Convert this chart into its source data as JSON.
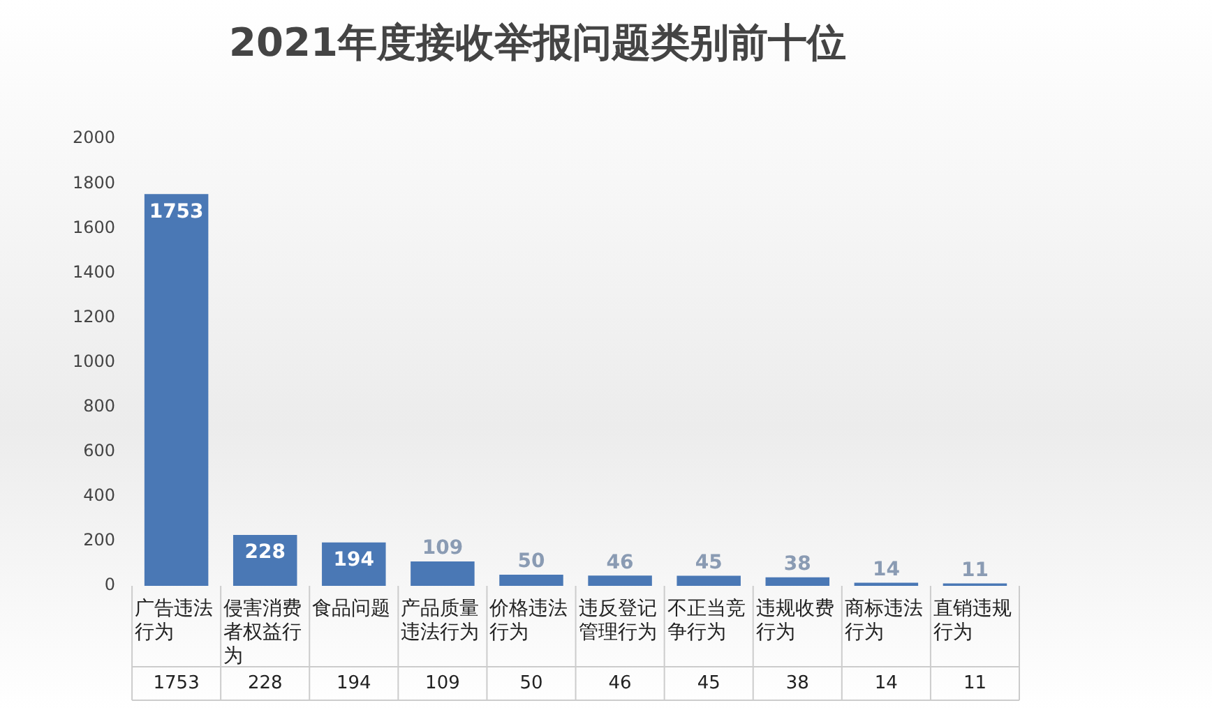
{
  "chart_data": {
    "type": "bar",
    "title": "2021年度接收举报问题类别前十位",
    "categories": [
      "广告违法行为",
      "侵害消费者权益行为",
      "食品问题",
      "产品质量违法行为",
      "价格违法行为",
      "违反登记管理行为",
      "不正当竞争行为",
      "违规收费行为",
      "商标违法行为",
      "直销违规行为"
    ],
    "values": [
      1753,
      228,
      194,
      109,
      50,
      46,
      45,
      38,
      14,
      11
    ],
    "value_labels": [
      "1753",
      "228",
      "194",
      "109",
      "50",
      "46",
      "45",
      "38",
      "14",
      "11"
    ],
    "annotations": [
      "1753",
      "228",
      "194",
      "109",
      "50",
      "46",
      "45",
      "38",
      "14",
      "11"
    ],
    "color": "#4a78b5",
    "ylim": [
      0,
      2000
    ],
    "yticks": [
      0,
      200,
      400,
      600,
      800,
      1000,
      1200,
      1400,
      1600,
      1800,
      2000
    ],
    "grid": false,
    "legend": false,
    "data_labels": true
  }
}
